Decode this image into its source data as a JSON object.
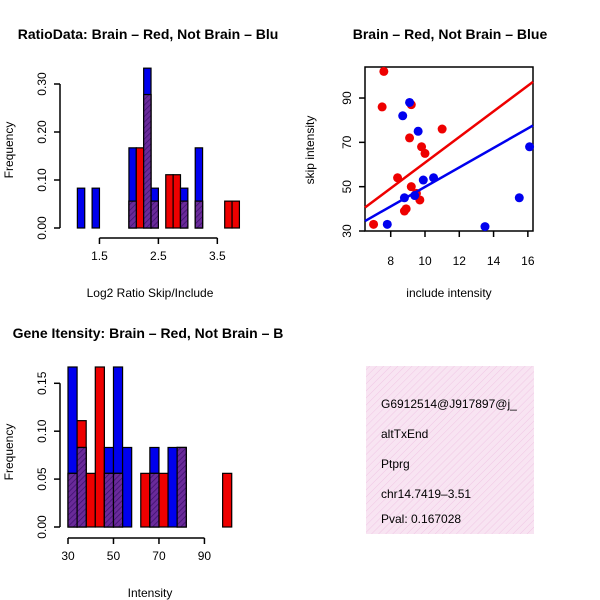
{
  "chart_data": [
    {
      "id": "ratio",
      "type": "bar",
      "title": "RatioData: Brain – Red, Not Brain – Blu",
      "xlabel": "Log2 Ratio Skip/Include",
      "ylabel": "Frequency",
      "xlim": [
        1.0,
        3.8
      ],
      "ylim": [
        0,
        0.35
      ],
      "xticks": [
        1.5,
        2.5,
        3.5
      ],
      "xtick_labels": [
        "1.5",
        "2.5",
        "3.5"
      ],
      "yticks": [
        0,
        0.1,
        0.2,
        0.3
      ],
      "ytick_labels": [
        "0.00",
        "0.10",
        "0.20",
        "0.30"
      ],
      "bin_width": 0.125,
      "series": [
        {
          "name": "Not Brain",
          "color": "#0000ee",
          "bins": [
            [
              1.125,
              0.083
            ],
            [
              1.375,
              0.083
            ],
            [
              2.0,
              0.167
            ],
            [
              2.25,
              0.333
            ],
            [
              2.375,
              0.083
            ],
            [
              2.875,
              0.083
            ],
            [
              3.125,
              0.167
            ]
          ]
        },
        {
          "name": "Brain",
          "color": "#ee0000",
          "bins": [
            [
              2.0,
              0.056
            ],
            [
              2.125,
              0.167
            ],
            [
              2.25,
              0.278
            ],
            [
              2.375,
              0.056
            ],
            [
              2.625,
              0.111
            ],
            [
              2.75,
              0.111
            ],
            [
              2.875,
              0.056
            ],
            [
              3.125,
              0.056
            ],
            [
              3.625,
              0.056
            ],
            [
              3.75,
              0.056
            ]
          ]
        }
      ]
    },
    {
      "id": "scatter",
      "type": "scatter",
      "title": "Brain – Red, Not Brain – Blue",
      "xlabel": "include intensity",
      "ylabel": "skip intensity",
      "xlim": [
        6.5,
        16.3
      ],
      "ylim": [
        30,
        104
      ],
      "xticks": [
        8,
        10,
        12,
        14,
        16
      ],
      "xtick_labels": [
        "8",
        "10",
        "12",
        "14",
        "16"
      ],
      "yticks": [
        30,
        50,
        70,
        90
      ],
      "ytick_labels": [
        "30",
        "50",
        "70",
        "90"
      ],
      "series": [
        {
          "name": "Brain",
          "color": "#ee0000",
          "points": [
            [
              7.0,
              33
            ],
            [
              7.5,
              86
            ],
            [
              7.6,
              102
            ],
            [
              8.4,
              54
            ],
            [
              8.8,
              39
            ],
            [
              8.9,
              40
            ],
            [
              9.1,
              72
            ],
            [
              9.2,
              50
            ],
            [
              9.2,
              87
            ],
            [
              9.5,
              47
            ],
            [
              9.7,
              44
            ],
            [
              9.8,
              68
            ],
            [
              10.0,
              65
            ],
            [
              11.0,
              76
            ]
          ],
          "fit": [
            [
              6.5,
              40.6
            ],
            [
              16.3,
              97.3
            ]
          ]
        },
        {
          "name": "Not Brain",
          "color": "#0000ee",
          "points": [
            [
              7.8,
              33
            ],
            [
              8.7,
              82
            ],
            [
              8.8,
              45
            ],
            [
              9.1,
              88
            ],
            [
              9.4,
              46
            ],
            [
              9.6,
              75
            ],
            [
              9.9,
              53
            ],
            [
              10.5,
              54
            ],
            [
              13.5,
              32
            ],
            [
              15.5,
              45
            ],
            [
              16.1,
              68
            ]
          ],
          "fit": [
            [
              6.5,
              34.5
            ],
            [
              16.3,
              77.6
            ]
          ]
        }
      ]
    },
    {
      "id": "intensity",
      "type": "bar",
      "title": "Gene Itensity: Brain – Red, Not Brain – B",
      "xlabel": "Intensity",
      "ylabel": "Frequency",
      "xlim": [
        30,
        103
      ],
      "ylim": [
        0,
        0.167
      ],
      "xticks": [
        30,
        50,
        70,
        90
      ],
      "xtick_labels": [
        "30",
        "50",
        "70",
        "90"
      ],
      "yticks": [
        0,
        0.05,
        0.1,
        0.15
      ],
      "ytick_labels": [
        "0.00",
        "0.05",
        "0.10",
        "0.15"
      ],
      "bin_width": 4,
      "series": [
        {
          "name": "Not Brain",
          "color": "#0000ee",
          "bins": [
            [
              30,
              0.167
            ],
            [
              34,
              0.083
            ],
            [
              46,
              0.083
            ],
            [
              50,
              0.167
            ],
            [
              54,
              0.083
            ],
            [
              66,
              0.083
            ],
            [
              74,
              0.083
            ],
            [
              78,
              0.083
            ]
          ]
        },
        {
          "name": "Brain",
          "color": "#ee0000",
          "bins": [
            [
              30,
              0.056
            ],
            [
              34,
              0.111
            ],
            [
              38,
              0.056
            ],
            [
              42,
              0.167
            ],
            [
              46,
              0.056
            ],
            [
              50,
              0.056
            ],
            [
              62,
              0.056
            ],
            [
              66,
              0.056
            ],
            [
              70,
              0.056
            ],
            [
              78,
              0.083
            ],
            [
              98,
              0.056
            ]
          ]
        }
      ]
    }
  ],
  "info_panel": {
    "lines": [
      "G6912514@J917897@j_",
      "altTxEnd",
      "Ptprg",
      "chr14.7419–3.51"
    ],
    "pval": "Pval: 0.167028",
    "pval_color": "#aa0000",
    "background": "#f6e0f0"
  }
}
